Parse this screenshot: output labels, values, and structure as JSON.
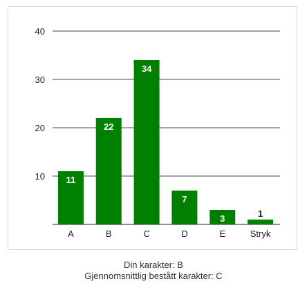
{
  "chart_data": {
    "type": "bar",
    "categories": [
      "A",
      "B",
      "C",
      "D",
      "E",
      "Stryk"
    ],
    "values": [
      11,
      22,
      34,
      7,
      3,
      1
    ],
    "ylim": [
      0,
      40
    ],
    "yticks": [
      10,
      20,
      30,
      40
    ],
    "grid": true,
    "legend": "none",
    "colors": {
      "bar": "#008000",
      "grid": "#444444",
      "label_inside": "#ffffff",
      "label_outside": "#222222"
    }
  },
  "captions": {
    "your_grade": "Din karakter: B",
    "average_grade": "Gjennomsnittlig bestått karakter: C"
  }
}
